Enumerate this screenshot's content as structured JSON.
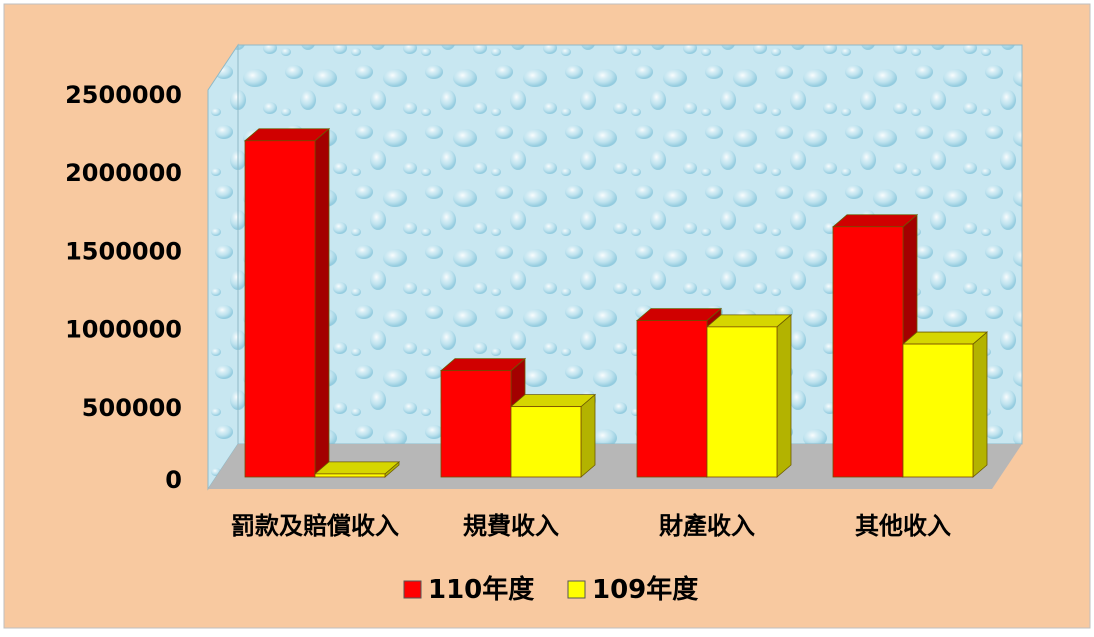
{
  "colors": {
    "outer_background": "#F8C9A0",
    "outer_border": "#BFBFBF",
    "plot_water_light": "#CFEBF3",
    "plot_water_dark": "#9ED3E5",
    "floor": "#B7B7B7",
    "series_110_front": "#FF0000",
    "series_110_top": "#D00000",
    "series_110_side": "#A30000",
    "series_109_front": "#FFFF00",
    "series_109_top": "#D6D600",
    "series_109_side": "#B3B300"
  },
  "chart_data": {
    "type": "bar",
    "style": "3d-clustered-column",
    "categories": [
      "罰款及賠償收入",
      "規費收入",
      "財產收入",
      "其他收入"
    ],
    "series": [
      {
        "name": "110年度",
        "values": [
          2150000,
          680000,
          1000000,
          1600000
        ]
      },
      {
        "name": "109年度",
        "values": [
          20000,
          450000,
          960000,
          850000
        ]
      }
    ],
    "ylim": [
      0,
      2500000
    ],
    "yticks": [
      0,
      500000,
      1000000,
      1500000,
      2000000,
      2500000
    ],
    "ytick_labels": [
      "0",
      "500000",
      "1000000",
      "1500000",
      "2000000",
      "2500000"
    ],
    "legend_position": "bottom",
    "grid": false
  }
}
